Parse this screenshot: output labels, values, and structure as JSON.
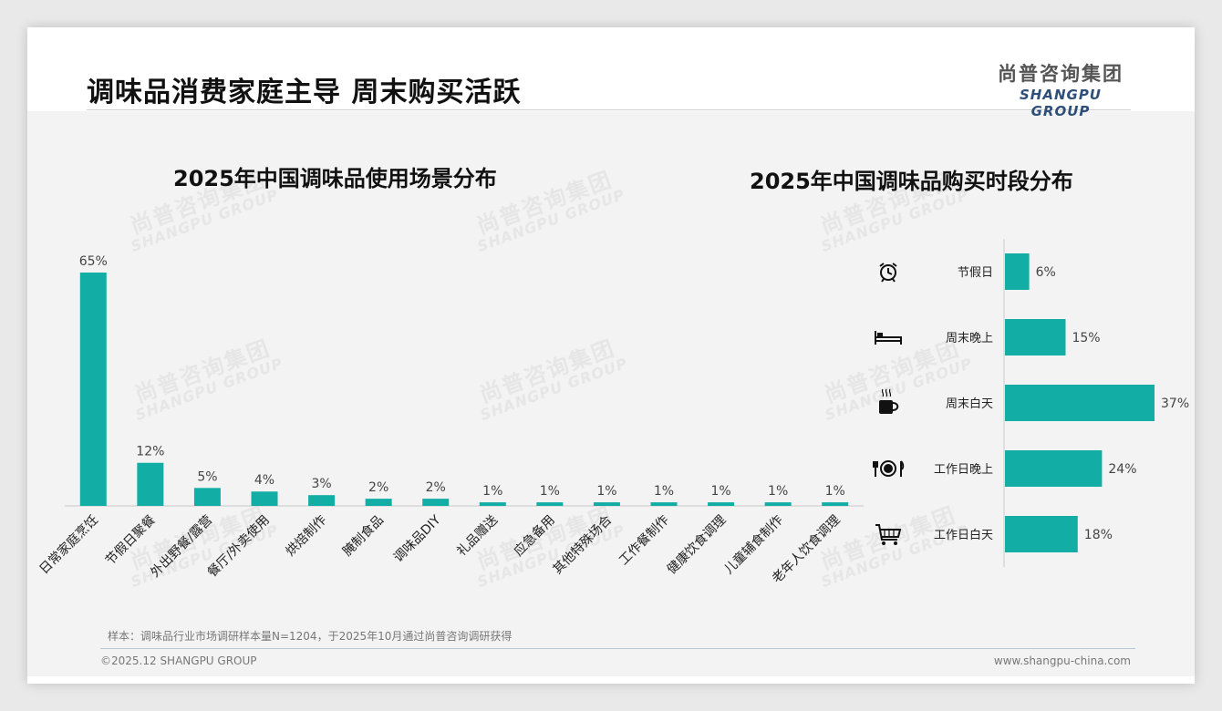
{
  "page": {
    "title": "调味品消费家庭主导 周末购买活跃",
    "logo_cn": "尚普咨询集团",
    "logo_en": "SHANGPU GROUP",
    "watermark_cn": "尚普咨询集团",
    "watermark_en": "SHANGPU GROUP",
    "footnote": "样本：调味品行业市场调研样本量N=1204，于2025年10月通过尚普咨询调研获得",
    "copyright": "©2025.12 SHANGPU GROUP",
    "website": "www.shangpu-china.com"
  },
  "colors": {
    "bar": "#12aea6",
    "axis": "#c8c8c8",
    "text": "#333333"
  },
  "chart_data": [
    {
      "type": "bar",
      "title": "2025年中国调味品使用场景分布",
      "categories": [
        "日常家庭烹饪",
        "节假日聚餐",
        "外出野餐/露营",
        "餐厅/外卖使用",
        "烘焙制作",
        "腌制食品",
        "调味品DIY",
        "礼品赠送",
        "应急备用",
        "其他特殊场合",
        "工作餐制作",
        "健康饮食调理",
        "儿童辅食制作",
        "老年人饮食调理"
      ],
      "values": [
        65,
        12,
        5,
        4,
        3,
        2,
        2,
        1,
        1,
        1,
        1,
        1,
        1,
        1
      ],
      "value_labels": [
        "65%",
        "12%",
        "5%",
        "4%",
        "3%",
        "2%",
        "2%",
        "1%",
        "1%",
        "1%",
        "1%",
        "1%",
        "1%",
        "1%"
      ],
      "unit": "%",
      "ylim": [
        0,
        65
      ],
      "grid": false
    },
    {
      "type": "bar",
      "orientation": "horizontal",
      "title": "2025年中国调味品购买时段分布",
      "categories": [
        "节假日",
        "周末晚上",
        "周末白天",
        "工作日晚上",
        "工作日白天"
      ],
      "icons": [
        "alarm-clock-icon",
        "bed-icon",
        "coffee-cup-icon",
        "plate-cutlery-icon",
        "shopping-cart-icon"
      ],
      "values": [
        6,
        15,
        37,
        24,
        18
      ],
      "value_labels": [
        "6%",
        "15%",
        "37%",
        "24%",
        "18%"
      ],
      "unit": "%",
      "xlim": [
        0,
        37
      ],
      "grid": false
    }
  ]
}
